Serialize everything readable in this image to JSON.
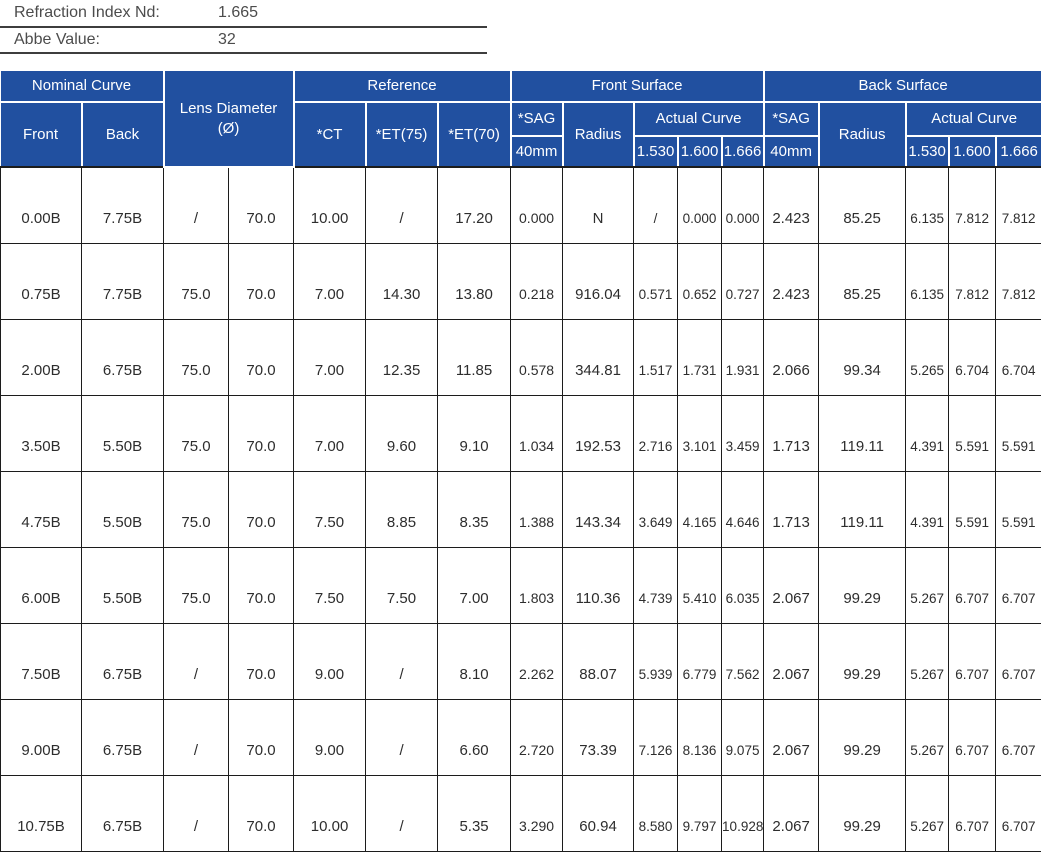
{
  "info": {
    "refraction_label": "Refraction Index Nd:",
    "refraction_value": "1.665",
    "abbe_label": "Abbe Value:",
    "abbe_value": "32"
  },
  "table": {
    "header": {
      "nominal_curve": "Nominal Curve",
      "front": "Front",
      "back": "Back",
      "lens_diameter_line1": "Lens Diameter",
      "lens_diameter_line2": "(Ø)",
      "reference": "Reference",
      "ct": "*CT",
      "et75": "*ET(75)",
      "et70": "*ET(70)",
      "front_surface": "Front Surface",
      "back_surface": "Back Surface",
      "sag": "*SAG",
      "sag_sub": "40mm",
      "radius": "Radius",
      "actual_curve": "Actual Curve",
      "index_1530": "1.530",
      "index_1600": "1.600",
      "index_1666": "1.666"
    },
    "rows": [
      [
        "0.00B",
        "7.75B",
        "/",
        "70.0",
        "10.00",
        "/",
        "17.20",
        "0.000",
        "N",
        "/",
        "0.000",
        "0.000",
        "2.423",
        "85.25",
        "6.135",
        "7.812",
        "7.812"
      ],
      [
        "0.75B",
        "7.75B",
        "75.0",
        "70.0",
        "7.00",
        "14.30",
        "13.80",
        "0.218",
        "916.04",
        "0.571",
        "0.652",
        "0.727",
        "2.423",
        "85.25",
        "6.135",
        "7.812",
        "7.812"
      ],
      [
        "2.00B",
        "6.75B",
        "75.0",
        "70.0",
        "7.00",
        "12.35",
        "11.85",
        "0.578",
        "344.81",
        "1.517",
        "1.731",
        "1.931",
        "2.066",
        "99.34",
        "5.265",
        "6.704",
        "6.704"
      ],
      [
        "3.50B",
        "5.50B",
        "75.0",
        "70.0",
        "7.00",
        "9.60",
        "9.10",
        "1.034",
        "192.53",
        "2.716",
        "3.101",
        "3.459",
        "1.713",
        "119.11",
        "4.391",
        "5.591",
        "5.591"
      ],
      [
        "4.75B",
        "5.50B",
        "75.0",
        "70.0",
        "7.50",
        "8.85",
        "8.35",
        "1.388",
        "143.34",
        "3.649",
        "4.165",
        "4.646",
        "1.713",
        "119.11",
        "4.391",
        "5.591",
        "5.591"
      ],
      [
        "6.00B",
        "5.50B",
        "75.0",
        "70.0",
        "7.50",
        "7.50",
        "7.00",
        "1.803",
        "110.36",
        "4.739",
        "5.410",
        "6.035",
        "2.067",
        "99.29",
        "5.267",
        "6.707",
        "6.707"
      ],
      [
        "7.50B",
        "6.75B",
        "/",
        "70.0",
        "9.00",
        "/",
        "8.10",
        "2.262",
        "88.07",
        "5.939",
        "6.779",
        "7.562",
        "2.067",
        "99.29",
        "5.267",
        "6.707",
        "6.707"
      ],
      [
        "9.00B",
        "6.75B",
        "/",
        "70.0",
        "9.00",
        "/",
        "6.60",
        "2.720",
        "73.39",
        "7.126",
        "8.136",
        "9.075",
        "2.067",
        "99.29",
        "5.267",
        "6.707",
        "6.707"
      ],
      [
        "10.75B",
        "6.75B",
        "/",
        "70.0",
        "10.00",
        "/",
        "5.35",
        "3.290",
        "60.94",
        "8.580",
        "9.797",
        "10.928",
        "2.067",
        "99.29",
        "5.267",
        "6.707",
        "6.707"
      ]
    ]
  },
  "colors": {
    "header_blue": "#2150a0",
    "grid_line": "#1c1c1c",
    "body_text": "#2d2d2d",
    "info_text": "#4c4c4c"
  }
}
